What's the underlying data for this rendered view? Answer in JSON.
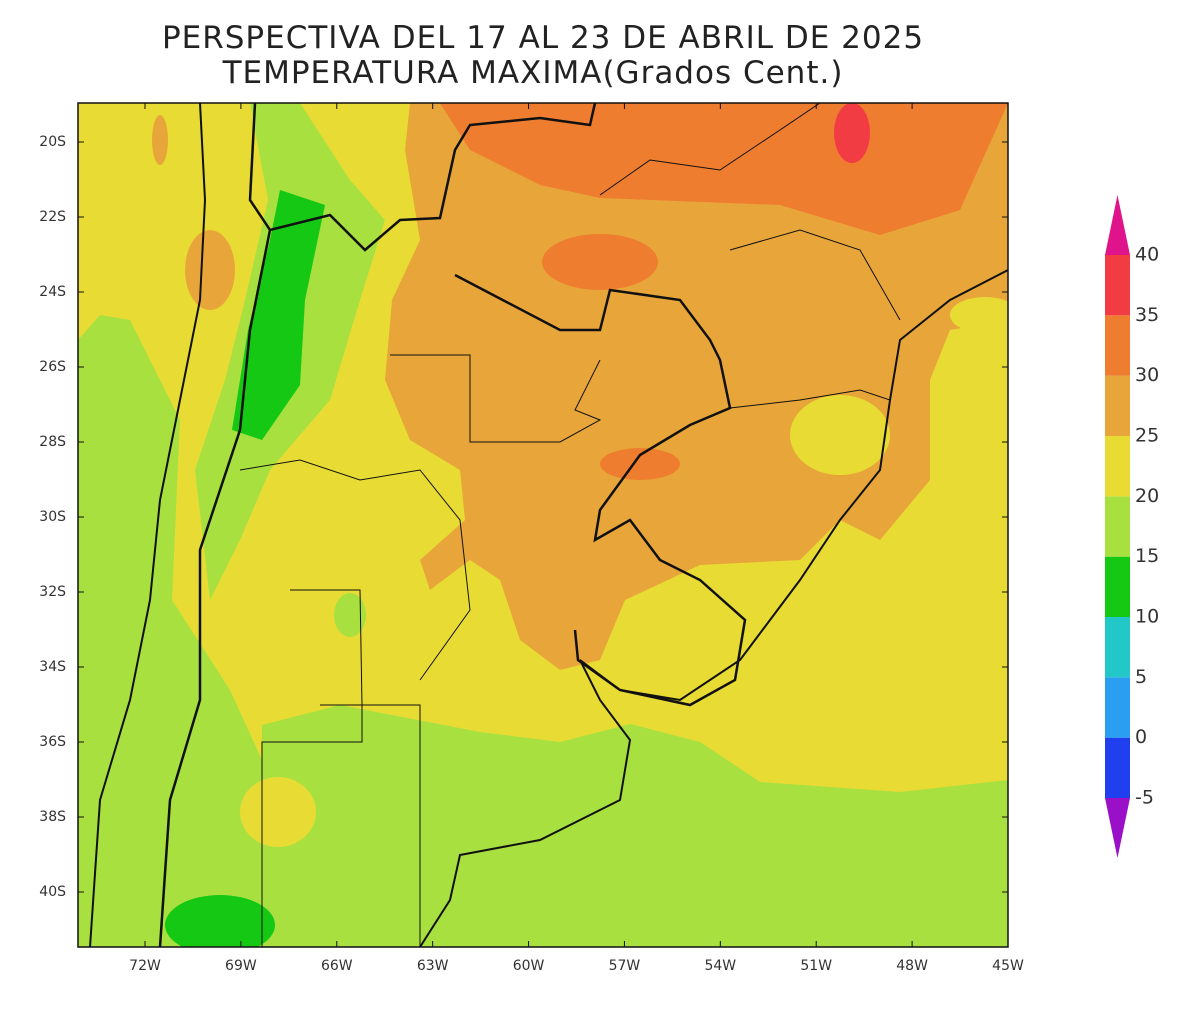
{
  "title": [
    "PERSPECTIVA DEL 17 AL 23 DE ABRIL DE 2025",
    "TEMPERATURA MAXIMA(Grados Cent.)"
  ],
  "map": {
    "lat_ticks": [
      "20S",
      "22S",
      "24S",
      "26S",
      "28S",
      "30S",
      "32S",
      "34S",
      "36S",
      "38S",
      "40S"
    ],
    "lon_ticks": [
      "72W",
      "69W",
      "66W",
      "63W",
      "60W",
      "57W",
      "54W",
      "51W",
      "48W",
      "45W"
    ]
  },
  "colorbar": {
    "levels": [
      -5,
      0,
      5,
      10,
      15,
      20,
      25,
      30,
      35,
      40
    ],
    "colors": [
      "#9a10c8",
      "#2040f0",
      "#2a9ef0",
      "#22c8c8",
      "#14c814",
      "#a8e040",
      "#e8dc34",
      "#e8a63a",
      "#ee7d30",
      "#f23c44",
      "#e0148a"
    ]
  }
}
